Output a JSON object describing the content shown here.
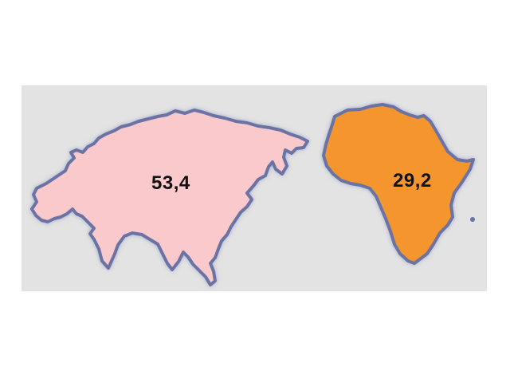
{
  "regions": [
    {
      "id": "eurasia",
      "value_label": "53,4",
      "fill_color": "#f9c9cb"
    },
    {
      "id": "africa",
      "value_label": "29,2",
      "fill_color": "#f4952f"
    }
  ],
  "outline_color": "#6a73a3",
  "background_color": "#e3e3e3"
}
